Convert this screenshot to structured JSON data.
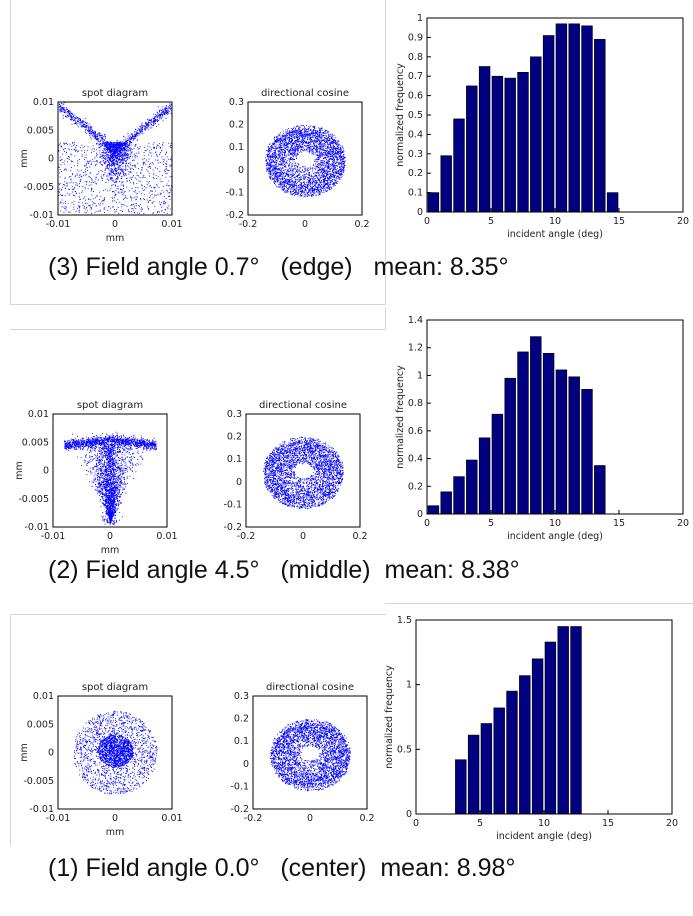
{
  "panels": [
    {
      "caption": "(3) Field angle 0.7°   (edge)   mean: 8.35°",
      "spot_diagram": {
        "title": "spot diagram",
        "xlabel": "mm",
        "ylabel": "mm",
        "x_ticks": [
          "-0.01",
          "0",
          "0.01"
        ],
        "y_ticks": [
          "0.01",
          "0.005",
          "0",
          "-0.005",
          "-0.01"
        ],
        "pattern": "wings",
        "color": "#0000ff"
      },
      "directional_cosine": {
        "title": "directional cosine",
        "x_ticks": [
          "-0.2",
          "0",
          "0.2"
        ],
        "y_ticks": [
          "0.3",
          "0.2",
          "0.1",
          "0",
          "-0.1",
          "-0.2"
        ],
        "pattern": "annulus",
        "color": "#0000ff"
      }
    },
    {
      "caption": "(2) Field angle 4.5°   (middle)  mean: 8.38°",
      "spot_diagram": {
        "title": "spot diagram",
        "xlabel": "mm",
        "ylabel": "mm",
        "x_ticks": [
          "-0.01",
          "0",
          "0.01"
        ],
        "y_ticks": [
          "0.01",
          "0.005",
          "0",
          "-0.005",
          "-0.01"
        ],
        "pattern": "fan",
        "color": "#0000ff"
      },
      "directional_cosine": {
        "title": "directional cosine",
        "x_ticks": [
          "-0.2",
          "0",
          "0.2"
        ],
        "y_ticks": [
          "0.3",
          "0.2",
          "0.1",
          "0",
          "-0.1",
          "-0.2"
        ],
        "pattern": "annulus",
        "color": "#0000ff"
      }
    },
    {
      "caption": "(1) Field angle 0.0°   (center)  mean: 8.98°",
      "spot_diagram": {
        "title": "spot diagram",
        "xlabel": "mm",
        "ylabel": "mm",
        "x_ticks": [
          "-0.01",
          "0",
          "0.01"
        ],
        "y_ticks": [
          "0.01",
          "0.005",
          "0",
          "-0.005",
          "-0.01"
        ],
        "pattern": "ring-core",
        "color": "#0000ff"
      },
      "directional_cosine": {
        "title": "directional cosine",
        "x_ticks": [
          "-0.2",
          "0",
          "0.2"
        ],
        "y_ticks": [
          "0.3",
          "0.2",
          "0.1",
          "0",
          "-0.1",
          "-0.2"
        ],
        "pattern": "annulus",
        "color": "#0000ff"
      }
    }
  ],
  "chart_data": [
    {
      "type": "bar",
      "xlabel": "incident angle (deg)",
      "ylabel": "normalized frequency",
      "xlim": [
        0,
        20
      ],
      "ylim": [
        0,
        1
      ],
      "x_ticks": [
        "0",
        "5",
        "10",
        "15",
        "20"
      ],
      "y_ticks": [
        "0",
        "0.1",
        "0.2",
        "0.3",
        "0.4",
        "0.5",
        "0.6",
        "0.7",
        "0.8",
        "0.9",
        "1"
      ],
      "x": [
        0.5,
        1.5,
        2.5,
        3.5,
        4.5,
        5.5,
        6.5,
        7.5,
        8.5,
        9.5,
        10.5,
        11.5,
        12.5,
        13.5,
        14.5
      ],
      "values": [
        0.1,
        0.29,
        0.48,
        0.65,
        0.75,
        0.7,
        0.69,
        0.72,
        0.8,
        0.91,
        0.97,
        0.97,
        0.96,
        0.89,
        0.1
      ],
      "bar_color": "#000080",
      "grid": false
    },
    {
      "type": "bar",
      "xlabel": "incident angle (deg)",
      "ylabel": "normalized frequency",
      "xlim": [
        0,
        20
      ],
      "ylim": [
        0,
        1.4
      ],
      "x_ticks": [
        "0",
        "5",
        "10",
        "15",
        "20"
      ],
      "y_ticks": [
        "0",
        "0.2",
        "0.4",
        "0.6",
        "0.8",
        "1",
        "1.2",
        "1.4"
      ],
      "x": [
        0.5,
        1.5,
        2.5,
        3.5,
        4.5,
        5.5,
        6.5,
        7.5,
        8.5,
        9.5,
        10.5,
        11.5,
        12.5,
        13.5
      ],
      "values": [
        0.06,
        0.16,
        0.27,
        0.39,
        0.55,
        0.72,
        0.98,
        1.17,
        1.28,
        1.16,
        1.04,
        0.99,
        0.9,
        0.35
      ],
      "bar_color": "#000080",
      "grid": false
    },
    {
      "type": "bar",
      "xlabel": "incident angle (deg)",
      "ylabel": "normalized frequency",
      "xlim": [
        0,
        20
      ],
      "ylim": [
        0,
        1.5
      ],
      "x_ticks": [
        "0",
        "5",
        "10",
        "15",
        "20"
      ],
      "y_ticks": [
        "0",
        "0.5",
        "1",
        "1.5"
      ],
      "x": [
        3.5,
        4.5,
        5.5,
        6.5,
        7.5,
        8.5,
        9.5,
        10.5,
        11.5,
        12.5
      ],
      "values": [
        0.42,
        0.61,
        0.7,
        0.82,
        0.95,
        1.07,
        1.2,
        1.33,
        1.45,
        1.45
      ],
      "bar_color": "#000080",
      "grid": false
    }
  ]
}
